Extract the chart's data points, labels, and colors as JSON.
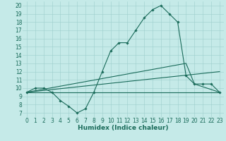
{
  "xlabel": "Humidex (Indice chaleur)",
  "xlim": [
    -0.5,
    23.5
  ],
  "ylim": [
    6.5,
    20.5
  ],
  "yticks": [
    7,
    8,
    9,
    10,
    11,
    12,
    13,
    14,
    15,
    16,
    17,
    18,
    19,
    20
  ],
  "xticks": [
    0,
    1,
    2,
    3,
    4,
    5,
    6,
    7,
    8,
    9,
    10,
    11,
    12,
    13,
    14,
    15,
    16,
    17,
    18,
    19,
    20,
    21,
    22,
    23
  ],
  "background_color": "#c5eae8",
  "grid_color": "#9dcfcc",
  "line_color": "#1a6b5a",
  "curve1_x": [
    0,
    1,
    2,
    3,
    4,
    5,
    6,
    7,
    8,
    9,
    10,
    11,
    12,
    13,
    14,
    15,
    16,
    17,
    18,
    19,
    20,
    21,
    22,
    23
  ],
  "curve1_y": [
    9.5,
    10.0,
    10.0,
    9.5,
    8.5,
    7.8,
    7.0,
    7.5,
    9.5,
    12.0,
    14.5,
    15.5,
    15.5,
    17.0,
    18.5,
    19.5,
    20.0,
    19.0,
    18.0,
    11.5,
    10.5,
    10.5,
    10.5,
    9.5
  ],
  "curve2_x": [
    0,
    1,
    2,
    3,
    4,
    5,
    6,
    7,
    8,
    9,
    10,
    11,
    12,
    13,
    14,
    15,
    16,
    17,
    18,
    19,
    20,
    21,
    22,
    23
  ],
  "curve2_y": [
    9.5,
    9.5,
    9.5,
    9.5,
    9.5,
    9.5,
    9.5,
    9.5,
    9.5,
    9.5,
    9.5,
    9.5,
    9.5,
    9.5,
    9.5,
    9.5,
    9.5,
    9.5,
    9.5,
    9.5,
    9.5,
    9.5,
    9.5,
    9.5
  ],
  "curve3_x": [
    0,
    23
  ],
  "curve3_y": [
    9.5,
    12.0
  ],
  "curve4_x": [
    0,
    19,
    20,
    23
  ],
  "curve4_y": [
    9.5,
    13.0,
    10.5,
    9.5
  ],
  "marker": "D",
  "markersize": 1.8,
  "linewidth": 0.8,
  "fontsize_label": 6.5,
  "fontsize_tick": 5.5
}
